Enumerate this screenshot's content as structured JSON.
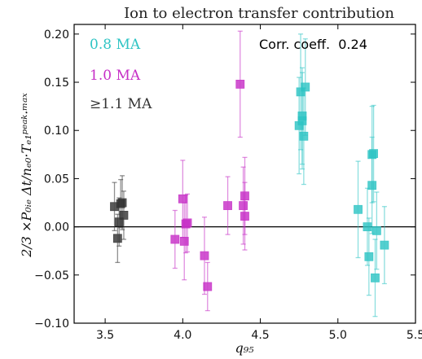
{
  "chart_data": {
    "type": "scatter",
    "title": "Ion to electron transfer contribution",
    "xlabel": "q₉₅",
    "ylabel": "2/3 ×P₀ᵢₑ Δt/nₑ₀·Tₑ₁ᵖᵉᵃᵏ·ᵐᵃˣ",
    "xlim": [
      3.3,
      5.5
    ],
    "ylim": [
      -0.1,
      0.21
    ],
    "x_ticks": [
      "3.5",
      "4.0",
      "4.5",
      "5.0",
      "5.5"
    ],
    "x_tick_values": [
      3.5,
      4.0,
      4.5,
      5.0,
      5.5
    ],
    "y_ticks": [
      "−0.10",
      "−0.05",
      "0.00",
      "0.05",
      "0.10",
      "0.15",
      "0.20"
    ],
    "y_tick_values": [
      -0.1,
      -0.05,
      0.0,
      0.05,
      0.1,
      0.15,
      0.2
    ],
    "reference_line_y": 0.0,
    "annotation": "Corr. coeff.  0.24",
    "legend_position": "top-left",
    "series": [
      {
        "name": "0.8 MA",
        "color": "#2EC4C4",
        "points": [
          {
            "x": 4.75,
            "y": 0.105,
            "err": 0.05
          },
          {
            "x": 4.76,
            "y": 0.14,
            "err": 0.06
          },
          {
            "x": 4.77,
            "y": 0.11,
            "err": 0.05
          },
          {
            "x": 4.77,
            "y": 0.115,
            "err": 0.05
          },
          {
            "x": 4.78,
            "y": 0.094,
            "err": 0.05
          },
          {
            "x": 4.79,
            "y": 0.145,
            "err": 0.05
          },
          {
            "x": 5.13,
            "y": 0.018,
            "err": 0.05
          },
          {
            "x": 5.19,
            "y": 0.0,
            "err": 0.04
          },
          {
            "x": 5.2,
            "y": -0.031,
            "err": 0.04
          },
          {
            "x": 5.22,
            "y": 0.043,
            "err": 0.05
          },
          {
            "x": 5.22,
            "y": 0.075,
            "err": 0.05
          },
          {
            "x": 5.23,
            "y": 0.076,
            "err": 0.05
          },
          {
            "x": 5.24,
            "y": -0.053,
            "err": 0.04
          },
          {
            "x": 5.25,
            "y": -0.004,
            "err": 0.04
          },
          {
            "x": 5.3,
            "y": -0.019,
            "err": 0.04
          }
        ]
      },
      {
        "name": "1.0 MA",
        "color": "#C62FC6",
        "points": [
          {
            "x": 3.95,
            "y": -0.013,
            "err": 0.03
          },
          {
            "x": 4.0,
            "y": 0.029,
            "err": 0.04
          },
          {
            "x": 4.01,
            "y": -0.015,
            "err": 0.04
          },
          {
            "x": 4.02,
            "y": 0.003,
            "err": 0.03
          },
          {
            "x": 4.03,
            "y": 0.004,
            "err": 0.03
          },
          {
            "x": 4.14,
            "y": -0.03,
            "err": 0.04
          },
          {
            "x": 4.16,
            "y": -0.062,
            "err": 0.025
          },
          {
            "x": 4.29,
            "y": 0.022,
            "err": 0.03
          },
          {
            "x": 4.37,
            "y": 0.148,
            "err": 0.055
          },
          {
            "x": 4.39,
            "y": 0.022,
            "err": 0.04
          },
          {
            "x": 4.4,
            "y": 0.032,
            "err": 0.04
          },
          {
            "x": 4.4,
            "y": 0.011,
            "err": 0.035
          }
        ]
      },
      {
        "name": "≥1.1 MA",
        "color": "#333333",
        "points": [
          {
            "x": 3.56,
            "y": 0.021,
            "err": 0.025
          },
          {
            "x": 3.58,
            "y": -0.012,
            "err": 0.025
          },
          {
            "x": 3.59,
            "y": 0.005,
            "err": 0.025
          },
          {
            "x": 3.6,
            "y": 0.024,
            "err": 0.025
          },
          {
            "x": 3.61,
            "y": 0.025,
            "err": 0.028
          },
          {
            "x": 3.62,
            "y": 0.012,
            "err": 0.025
          }
        ]
      }
    ]
  }
}
